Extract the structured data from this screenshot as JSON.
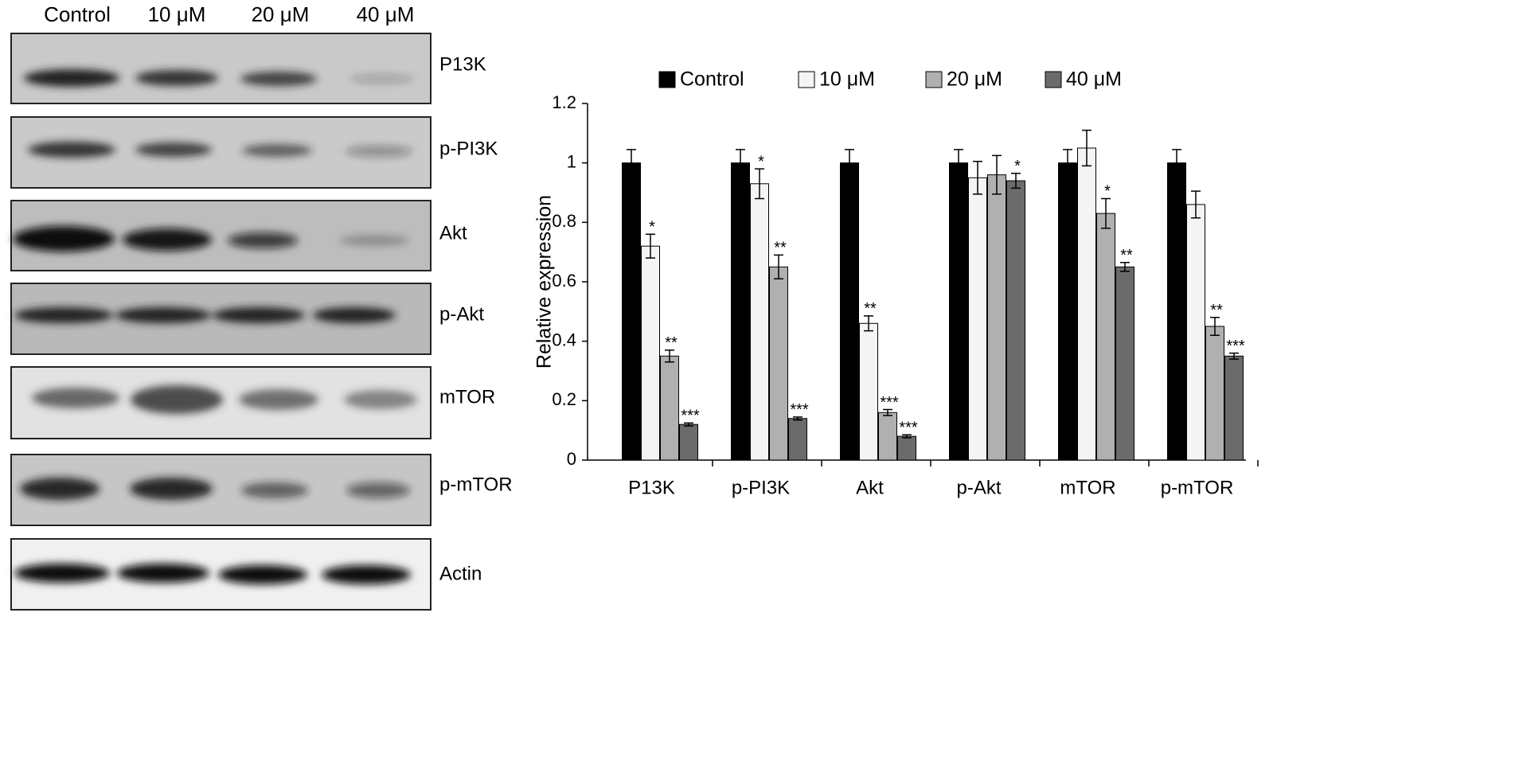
{
  "blot": {
    "lanes": [
      "Control",
      "10 μM",
      "20 μM",
      "40 μM"
    ],
    "rows": [
      "P13K",
      "p-PI3K",
      "Akt",
      "p-Akt",
      "mTOR",
      "p-mTOR",
      "Actin"
    ]
  },
  "chart_data": {
    "type": "bar",
    "ylabel": "Relative expression",
    "categories": [
      "P13K",
      "p-PI3K",
      "Akt",
      "p-Akt",
      "mTOR",
      "p-mTOR"
    ],
    "ylim": [
      0,
      1.2
    ],
    "yticks": [
      0,
      0.2,
      0.4,
      0.6,
      0.8,
      1,
      1.2
    ],
    "series": [
      {
        "name": "Control",
        "color": "#000000",
        "values": [
          1,
          1,
          1,
          1,
          1,
          1
        ],
        "errors": [
          0.045,
          0.045,
          0.045,
          0.045,
          0.045,
          0.045
        ],
        "annotations": [
          null,
          null,
          null,
          null,
          null,
          null
        ]
      },
      {
        "name": "10 μM",
        "color": "#f4f4f4",
        "values": [
          0.72,
          0.93,
          0.46,
          0.95,
          1.05,
          0.86
        ],
        "errors": [
          0.04,
          0.05,
          0.025,
          0.055,
          0.06,
          0.045
        ],
        "annotations": [
          "*",
          "*",
          "**",
          null,
          null,
          null
        ]
      },
      {
        "name": "20 μM",
        "color": "#b0b0b0",
        "values": [
          0.35,
          0.65,
          0.16,
          0.96,
          0.83,
          0.45
        ],
        "errors": [
          0.02,
          0.04,
          0.01,
          0.065,
          0.05,
          0.03
        ],
        "annotations": [
          "**",
          "**",
          "***",
          null,
          "*",
          "**"
        ]
      },
      {
        "name": "40 μM",
        "color": "#6b6b6b",
        "values": [
          0.12,
          0.14,
          0.08,
          0.94,
          0.65,
          0.35
        ],
        "errors": [
          0.005,
          0.005,
          0.005,
          0.025,
          0.015,
          0.01
        ],
        "annotations": [
          "***",
          "***",
          "***",
          "*",
          "**",
          "***"
        ]
      }
    ]
  }
}
